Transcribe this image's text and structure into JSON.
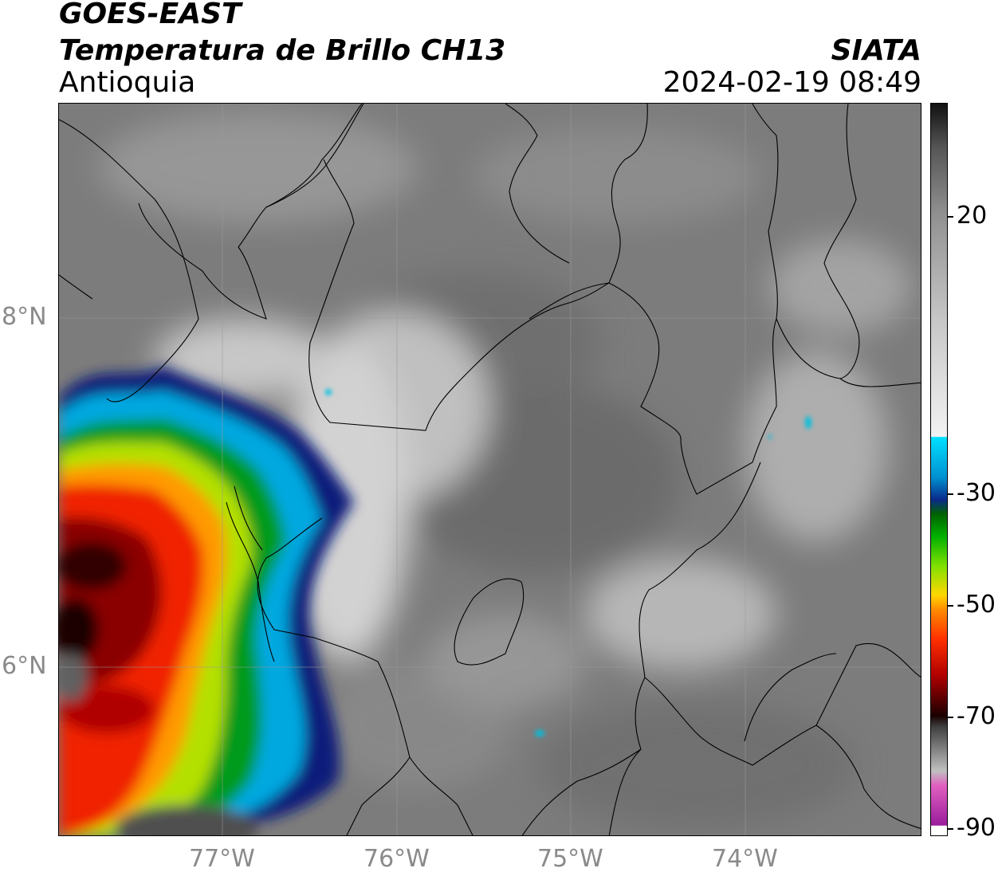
{
  "header": {
    "title_line1": "GOES-EAST",
    "title_line2": "Temperatura de Brillo CH13",
    "region": "Antioquia",
    "organization": "SIATA",
    "datetime": "2024-02-19 08:49"
  },
  "map": {
    "latitude_labels": [
      "8°N",
      "6°N"
    ],
    "longitude_labels": [
      "77°W",
      "76°W",
      "75°W",
      "74°W"
    ]
  },
  "colorbar": {
    "tick_labels": [
      "20",
      "-30",
      "-50",
      "-70",
      "-90"
    ],
    "colors": [
      "#ffffff",
      "#9b1d9b",
      "#e060c0",
      "#c0c0c0",
      "#404040",
      "#1a0000",
      "#b00000",
      "#ff3000",
      "#ff8c00",
      "#ffd800",
      "#7ee000",
      "#00b000",
      "#006400",
      "#0a2a8a",
      "#0090d0",
      "#00e0ff",
      "#f2f2f2",
      "#c8c8c8",
      "#909090",
      "#555555",
      "#111111"
    ]
  }
}
